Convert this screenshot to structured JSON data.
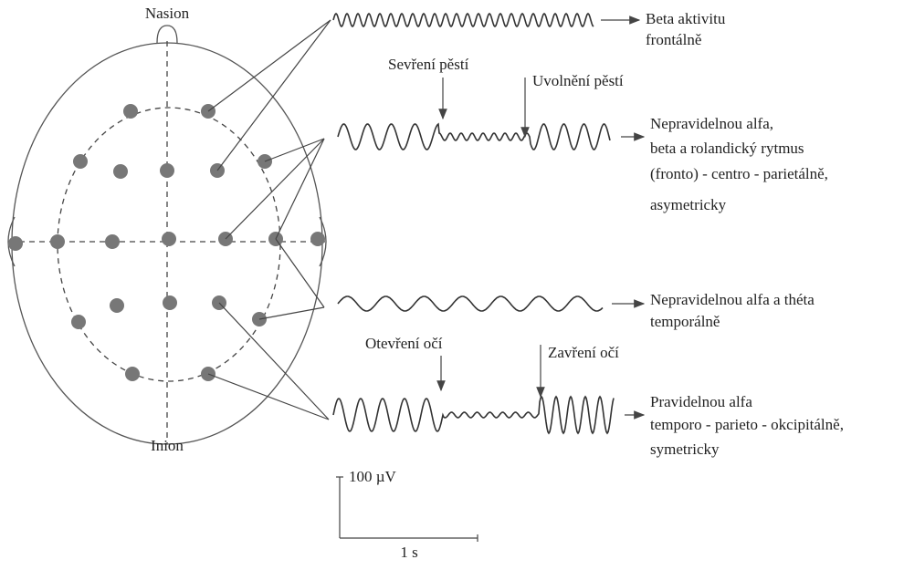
{
  "head": {
    "nasion": "Nasion",
    "inion": "Inion"
  },
  "traces": [
    {
      "description": [
        "Beta aktivitu",
        "frontálně"
      ]
    },
    {
      "markers": [
        "Sevření pěstí",
        "Uvolnění pěstí"
      ],
      "description": [
        "Nepravidelnou alfa,",
        "beta a rolandický rytmus",
        "(fronto) - centro - parietálně,",
        "asymetricky"
      ]
    },
    {
      "description": [
        "Nepravidelnou alfa a théta",
        "temporálně"
      ]
    },
    {
      "markers": [
        "Otevření očí",
        "Zavření očí"
      ],
      "description": [
        "Pravidelnou alfa",
        "temporo - parieto - okcipitálně,",
        "symetricky"
      ]
    }
  ],
  "scale": {
    "amplitude": "100 µV",
    "time": "1 s"
  }
}
